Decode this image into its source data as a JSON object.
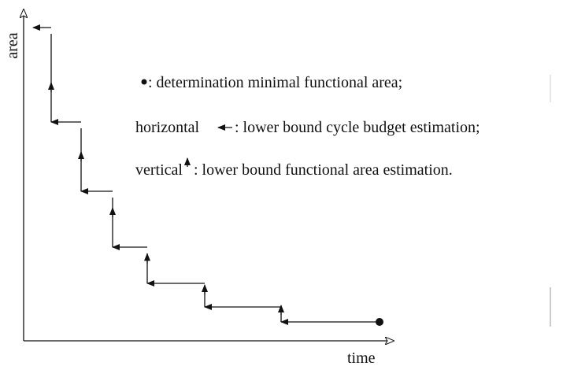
{
  "axes": {
    "y_label": "area",
    "x_label": "time"
  },
  "legend": [
    {
      "text": ": determination minimal functional area;"
    },
    {
      "prefix": "horizontal",
      "text": ": lower bound cycle budget estimation;"
    },
    {
      "prefix": "vertical",
      "text": ": lower bound functional area estimation."
    }
  ]
}
